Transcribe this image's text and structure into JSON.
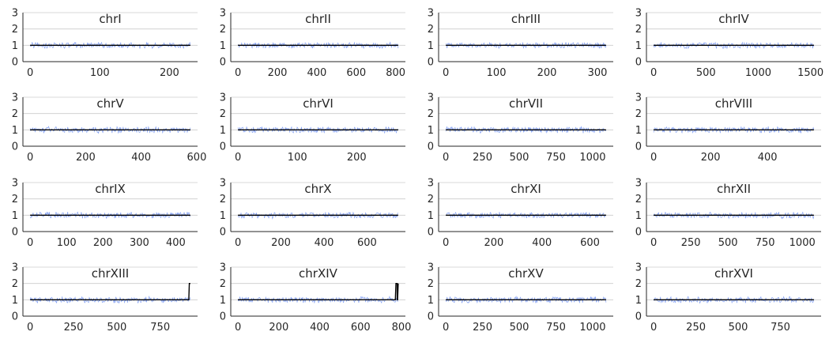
{
  "chart_data": [
    {
      "type": "line",
      "title": "chrI",
      "xlim": [
        0,
        230
      ],
      "ylim": [
        0,
        3
      ],
      "xticks": [
        0,
        100,
        200
      ],
      "yticks": [
        0,
        1,
        2,
        3
      ],
      "coverage_mean": 1.0,
      "coverage_noise": 0.15,
      "series": [
        {
          "values": [
            [
              0,
              1
            ],
            [
              230,
              1
            ]
          ]
        }
      ]
    },
    {
      "type": "line",
      "title": "chrII",
      "xlim": [
        0,
        813
      ],
      "ylim": [
        0,
        3
      ],
      "xticks": [
        0,
        200,
        400,
        600,
        800
      ],
      "yticks": [
        0,
        1,
        2,
        3
      ],
      "coverage_mean": 1.0,
      "coverage_noise": 0.15,
      "series": [
        {
          "values": [
            [
              0,
              1
            ],
            [
              813,
              1
            ]
          ]
        }
      ]
    },
    {
      "type": "line",
      "title": "chrIII",
      "xlim": [
        0,
        317
      ],
      "ylim": [
        0,
        3
      ],
      "xticks": [
        0,
        100,
        200,
        300
      ],
      "yticks": [
        0,
        1,
        2,
        3
      ],
      "coverage_mean": 1.0,
      "coverage_noise": 0.15,
      "series": [
        {
          "values": [
            [
              0,
              1
            ],
            [
              317,
              1
            ]
          ]
        }
      ]
    },
    {
      "type": "line",
      "title": "chrIV",
      "xlim": [
        0,
        1532
      ],
      "ylim": [
        0,
        3
      ],
      "xticks": [
        0,
        500,
        1000,
        1500
      ],
      "yticks": [
        0,
        1,
        2,
        3
      ],
      "coverage_mean": 1.0,
      "coverage_noise": 0.15,
      "series": [
        {
          "values": [
            [
              0,
              1
            ],
            [
              1532,
              1
            ]
          ]
        }
      ]
    },
    {
      "type": "line",
      "title": "chrV",
      "xlim": [
        0,
        577
      ],
      "ylim": [
        0,
        3
      ],
      "xticks": [
        0,
        200,
        400,
        600
      ],
      "yticks": [
        0,
        1,
        2,
        3
      ],
      "coverage_mean": 1.0,
      "coverage_noise": 0.15,
      "series": [
        {
          "values": [
            [
              0,
              1
            ],
            [
              577,
              1
            ]
          ]
        }
      ]
    },
    {
      "type": "line",
      "title": "chrVI",
      "xlim": [
        0,
        270
      ],
      "ylim": [
        0,
        3
      ],
      "xticks": [
        0,
        100,
        200
      ],
      "yticks": [
        0,
        1,
        2,
        3
      ],
      "coverage_mean": 1.0,
      "coverage_noise": 0.15,
      "series": [
        {
          "values": [
            [
              0,
              1
            ],
            [
              270,
              1
            ]
          ]
        }
      ]
    },
    {
      "type": "line",
      "title": "chrVII",
      "xlim": [
        0,
        1091
      ],
      "ylim": [
        0,
        3
      ],
      "xticks": [
        0,
        250,
        500,
        750,
        1000
      ],
      "yticks": [
        0,
        1,
        2,
        3
      ],
      "coverage_mean": 1.0,
      "coverage_noise": 0.15,
      "series": [
        {
          "values": [
            [
              0,
              1
            ],
            [
              1091,
              1
            ]
          ]
        }
      ]
    },
    {
      "type": "line",
      "title": "chrVIII",
      "xlim": [
        0,
        563
      ],
      "ylim": [
        0,
        3
      ],
      "xticks": [
        0,
        200,
        400
      ],
      "yticks": [
        0,
        1,
        2,
        3
      ],
      "coverage_mean": 1.0,
      "coverage_noise": 0.15,
      "series": [
        {
          "values": [
            [
              0,
              1
            ],
            [
              563,
              1
            ]
          ]
        }
      ]
    },
    {
      "type": "line",
      "title": "chrIX",
      "xlim": [
        0,
        440
      ],
      "ylim": [
        0,
        3
      ],
      "xticks": [
        0,
        100,
        200,
        300,
        400
      ],
      "yticks": [
        0,
        1,
        2,
        3
      ],
      "coverage_mean": 1.0,
      "coverage_noise": 0.15,
      "series": [
        {
          "values": [
            [
              0,
              1
            ],
            [
              440,
              1
            ]
          ]
        }
      ]
    },
    {
      "type": "line",
      "title": "chrX",
      "xlim": [
        0,
        745
      ],
      "ylim": [
        0,
        3
      ],
      "xticks": [
        0,
        200,
        400,
        600
      ],
      "yticks": [
        0,
        1,
        2,
        3
      ],
      "coverage_mean": 1.0,
      "coverage_noise": 0.15,
      "series": [
        {
          "values": [
            [
              0,
              1
            ],
            [
              745,
              1
            ]
          ]
        }
      ]
    },
    {
      "type": "line",
      "title": "chrXI",
      "xlim": [
        0,
        667
      ],
      "ylim": [
        0,
        3
      ],
      "xticks": [
        0,
        200,
        400,
        600
      ],
      "yticks": [
        0,
        1,
        2,
        3
      ],
      "coverage_mean": 1.0,
      "coverage_noise": 0.15,
      "series": [
        {
          "values": [
            [
              0,
              1
            ],
            [
              667,
              1
            ]
          ]
        }
      ]
    },
    {
      "type": "line",
      "title": "chrXII",
      "xlim": [
        0,
        1078
      ],
      "ylim": [
        0,
        3
      ],
      "xticks": [
        0,
        250,
        500,
        750,
        1000
      ],
      "yticks": [
        0,
        1,
        2,
        3
      ],
      "coverage_mean": 1.0,
      "coverage_noise": 0.15,
      "series": [
        {
          "values": [
            [
              0,
              1
            ],
            [
              1078,
              1
            ]
          ]
        }
      ]
    },
    {
      "type": "line",
      "title": "chrXIII",
      "xlim": [
        0,
        924
      ],
      "ylim": [
        0,
        3
      ],
      "xticks": [
        0,
        250,
        500,
        750
      ],
      "yticks": [
        0,
        1,
        2,
        3
      ],
      "coverage_mean": 1.0,
      "coverage_noise": 0.15,
      "series": [
        {
          "values": [
            [
              0,
              1
            ],
            [
              915,
              1
            ],
            [
              918,
              2
            ],
            [
              924,
              2
            ]
          ]
        }
      ]
    },
    {
      "type": "line",
      "title": "chrXIV",
      "xlim": [
        0,
        784
      ],
      "ylim": [
        0,
        3
      ],
      "xticks": [
        0,
        200,
        400,
        600,
        800
      ],
      "yticks": [
        0,
        1,
        2,
        3
      ],
      "coverage_mean": 1.0,
      "coverage_noise": 0.15,
      "series": [
        {
          "values": [
            [
              0,
              1
            ],
            [
              770,
              1
            ],
            [
              773,
              2
            ],
            [
              779,
              2
            ],
            [
              779,
              1
            ],
            [
              781,
              1
            ],
            [
              784,
              2
            ]
          ]
        }
      ]
    },
    {
      "type": "line",
      "title": "chrXV",
      "xlim": [
        0,
        1091
      ],
      "ylim": [
        0,
        3
      ],
      "xticks": [
        0,
        250,
        500,
        750,
        1000
      ],
      "yticks": [
        0,
        1,
        2,
        3
      ],
      "coverage_mean": 1.0,
      "coverage_noise": 0.15,
      "series": [
        {
          "values": [
            [
              0,
              1
            ],
            [
              1091,
              1
            ]
          ]
        }
      ]
    },
    {
      "type": "line",
      "title": "chrXVI",
      "xlim": [
        0,
        948
      ],
      "ylim": [
        0,
        3
      ],
      "xticks": [
        0,
        250,
        500,
        750
      ],
      "yticks": [
        0,
        1,
        2,
        3
      ],
      "coverage_mean": 1.0,
      "coverage_noise": 0.15,
      "series": [
        {
          "values": [
            [
              0,
              1
            ],
            [
              948,
              1
            ]
          ]
        }
      ]
    }
  ],
  "colors": {
    "coverage": "#6c8ef0",
    "copy_number": "#000000",
    "grid": "#cccccc",
    "axis": "#262626",
    "text": "#262626"
  }
}
